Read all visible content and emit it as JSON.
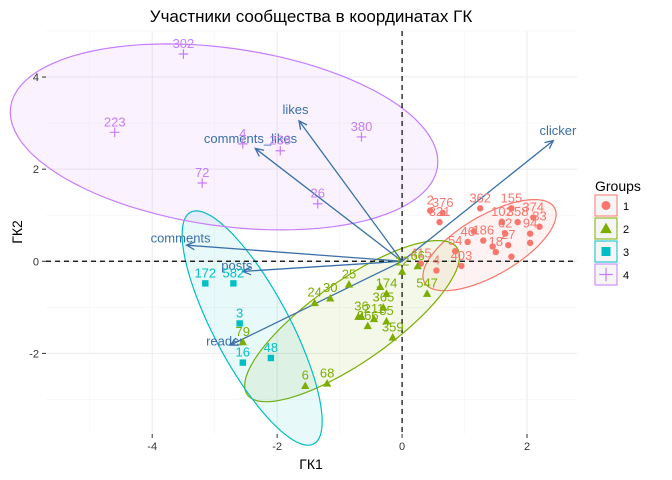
{
  "chart_data": {
    "type": "scatter",
    "title": "Участники сообщества в координатах ГК",
    "xlabel": "ГК1",
    "ylabel": "ГК2",
    "xlim": [
      -5.7,
      2.8
    ],
    "ylim": [
      -3.75,
      5.0
    ],
    "x_ticks": [
      -4,
      -2,
      0,
      2
    ],
    "y_ticks": [
      -2,
      0,
      2,
      4
    ],
    "grid": true,
    "reference_lines": {
      "x": 0,
      "y": 0,
      "style": "dashed"
    },
    "legend": {
      "title": "Groups",
      "position": "right",
      "entries": [
        {
          "label": "1",
          "color": "#f8766d",
          "shape": "circle"
        },
        {
          "label": "2",
          "color": "#7cae00",
          "shape": "triangle"
        },
        {
          "label": "3",
          "color": "#00bfc4",
          "shape": "square"
        },
        {
          "label": "4",
          "color": "#c77cff",
          "shape": "plus"
        }
      ]
    },
    "loadings": [
      {
        "name": "clicker",
        "x": 2.42,
        "y": 2.62
      },
      {
        "name": "likes",
        "x": -1.65,
        "y": 3.05
      },
      {
        "name": "comments_likes",
        "x": -2.35,
        "y": 2.45
      },
      {
        "name": "comments",
        "x": -3.45,
        "y": 0.35
      },
      {
        "name": "posts",
        "x": -2.55,
        "y": -0.22
      },
      {
        "name": "reader",
        "x": -2.75,
        "y": -1.82
      }
    ],
    "ellipses": [
      {
        "group": "1",
        "center": [
          1.4,
          0.35
        ],
        "rx": 1.2,
        "ry": 0.65,
        "angle": 30
      },
      {
        "group": "2",
        "center": [
          -0.8,
          -1.3
        ],
        "rx": 2.05,
        "ry": 0.88,
        "angle": 35
      },
      {
        "group": "3",
        "center": [
          -2.4,
          -1.45
        ],
        "rx": 2.1,
        "ry": 0.82,
        "angle": -62
      },
      {
        "group": "4",
        "center": [
          -2.85,
          2.7
        ],
        "rx": 3.45,
        "ry": 1.93,
        "angle": -8
      }
    ],
    "groups": [
      {
        "name": "1",
        "points": [
          {
            "x": 0.45,
            "y": 1.1,
            "label": "2"
          },
          {
            "x": 0.65,
            "y": 1.05,
            "label": "376"
          },
          {
            "x": 0.6,
            "y": 0.85,
            "label": "321"
          },
          {
            "x": 1.25,
            "y": 1.15,
            "label": "362"
          },
          {
            "x": 1.75,
            "y": 1.15,
            "label": "155"
          },
          {
            "x": 2.1,
            "y": 0.95,
            "label": "374"
          },
          {
            "x": 1.6,
            "y": 0.85,
            "label": "102"
          },
          {
            "x": 1.85,
            "y": 0.85,
            "label": "358"
          },
          {
            "x": 2.2,
            "y": 0.75,
            "label": "33"
          },
          {
            "x": 1.65,
            "y": 0.6,
            "label": "62"
          },
          {
            "x": 2.05,
            "y": 0.6,
            "label": "94"
          },
          {
            "x": 1.3,
            "y": 0.45,
            "label": "186"
          },
          {
            "x": 1.05,
            "y": 0.42,
            "label": "46"
          },
          {
            "x": 1.7,
            "y": 0.35,
            "label": "27"
          },
          {
            "x": 0.85,
            "y": 0.22,
            "label": "54"
          },
          {
            "x": 1.5,
            "y": 0.2,
            "label": "18"
          },
          {
            "x": 0.3,
            "y": -0.05,
            "label": "415"
          },
          {
            "x": 0.95,
            "y": -0.1,
            "label": "403"
          },
          {
            "x": 0.55,
            "y": -0.2,
            "label": "4"
          },
          {
            "x": 1.45,
            "y": 0.32,
            "label": ""
          },
          {
            "x": 1.75,
            "y": 0.1,
            "label": ""
          },
          {
            "x": 2.05,
            "y": 0.4,
            "label": ""
          },
          {
            "x": 1.15,
            "y": 0.65,
            "label": ""
          }
        ]
      },
      {
        "name": "2",
        "points": [
          {
            "x": 0.25,
            "y": -0.1,
            "label": "66"
          },
          {
            "x": 0.0,
            "y": -0.22,
            "label": "12"
          },
          {
            "x": 0.4,
            "y": -0.7,
            "label": "547"
          },
          {
            "x": -0.85,
            "y": -0.5,
            "label": "25"
          },
          {
            "x": -0.25,
            "y": -0.7,
            "label": "174"
          },
          {
            "x": -1.15,
            "y": -0.8,
            "label": "30"
          },
          {
            "x": -1.4,
            "y": -0.9,
            "label": "24"
          },
          {
            "x": -0.3,
            "y": -1.0,
            "label": "365"
          },
          {
            "x": -0.65,
            "y": -1.2,
            "label": "36"
          },
          {
            "x": -0.45,
            "y": -1.25,
            "label": "211"
          },
          {
            "x": -0.25,
            "y": -1.3,
            "label": "85"
          },
          {
            "x": -0.55,
            "y": -1.4,
            "label": "266"
          },
          {
            "x": -0.15,
            "y": -1.65,
            "label": "359"
          },
          {
            "x": -2.55,
            "y": -1.75,
            "label": "79"
          },
          {
            "x": -1.55,
            "y": -2.7,
            "label": "6"
          },
          {
            "x": -1.2,
            "y": -2.65,
            "label": "68"
          },
          {
            "x": -0.7,
            "y": -1.2,
            "label": ""
          },
          {
            "x": -0.35,
            "y": -0.55,
            "label": ""
          }
        ]
      },
      {
        "name": "3",
        "points": [
          {
            "x": -3.15,
            "y": -0.48,
            "label": "172"
          },
          {
            "x": -2.7,
            "y": -0.48,
            "label": "582"
          },
          {
            "x": -2.6,
            "y": -1.35,
            "label": "3"
          },
          {
            "x": -2.55,
            "y": -2.2,
            "label": "16"
          },
          {
            "x": -2.1,
            "y": -2.1,
            "label": "48"
          }
        ]
      },
      {
        "name": "4",
        "points": [
          {
            "x": -3.5,
            "y": 4.5,
            "label": "302"
          },
          {
            "x": -4.6,
            "y": 2.8,
            "label": "223"
          },
          {
            "x": -2.55,
            "y": 2.55,
            "label": "4"
          },
          {
            "x": -1.95,
            "y": 2.4,
            "label": "238"
          },
          {
            "x": -0.65,
            "y": 2.7,
            "label": "380"
          },
          {
            "x": -3.2,
            "y": 1.7,
            "label": "72"
          },
          {
            "x": -1.35,
            "y": 1.25,
            "label": "26"
          }
        ]
      }
    ]
  }
}
